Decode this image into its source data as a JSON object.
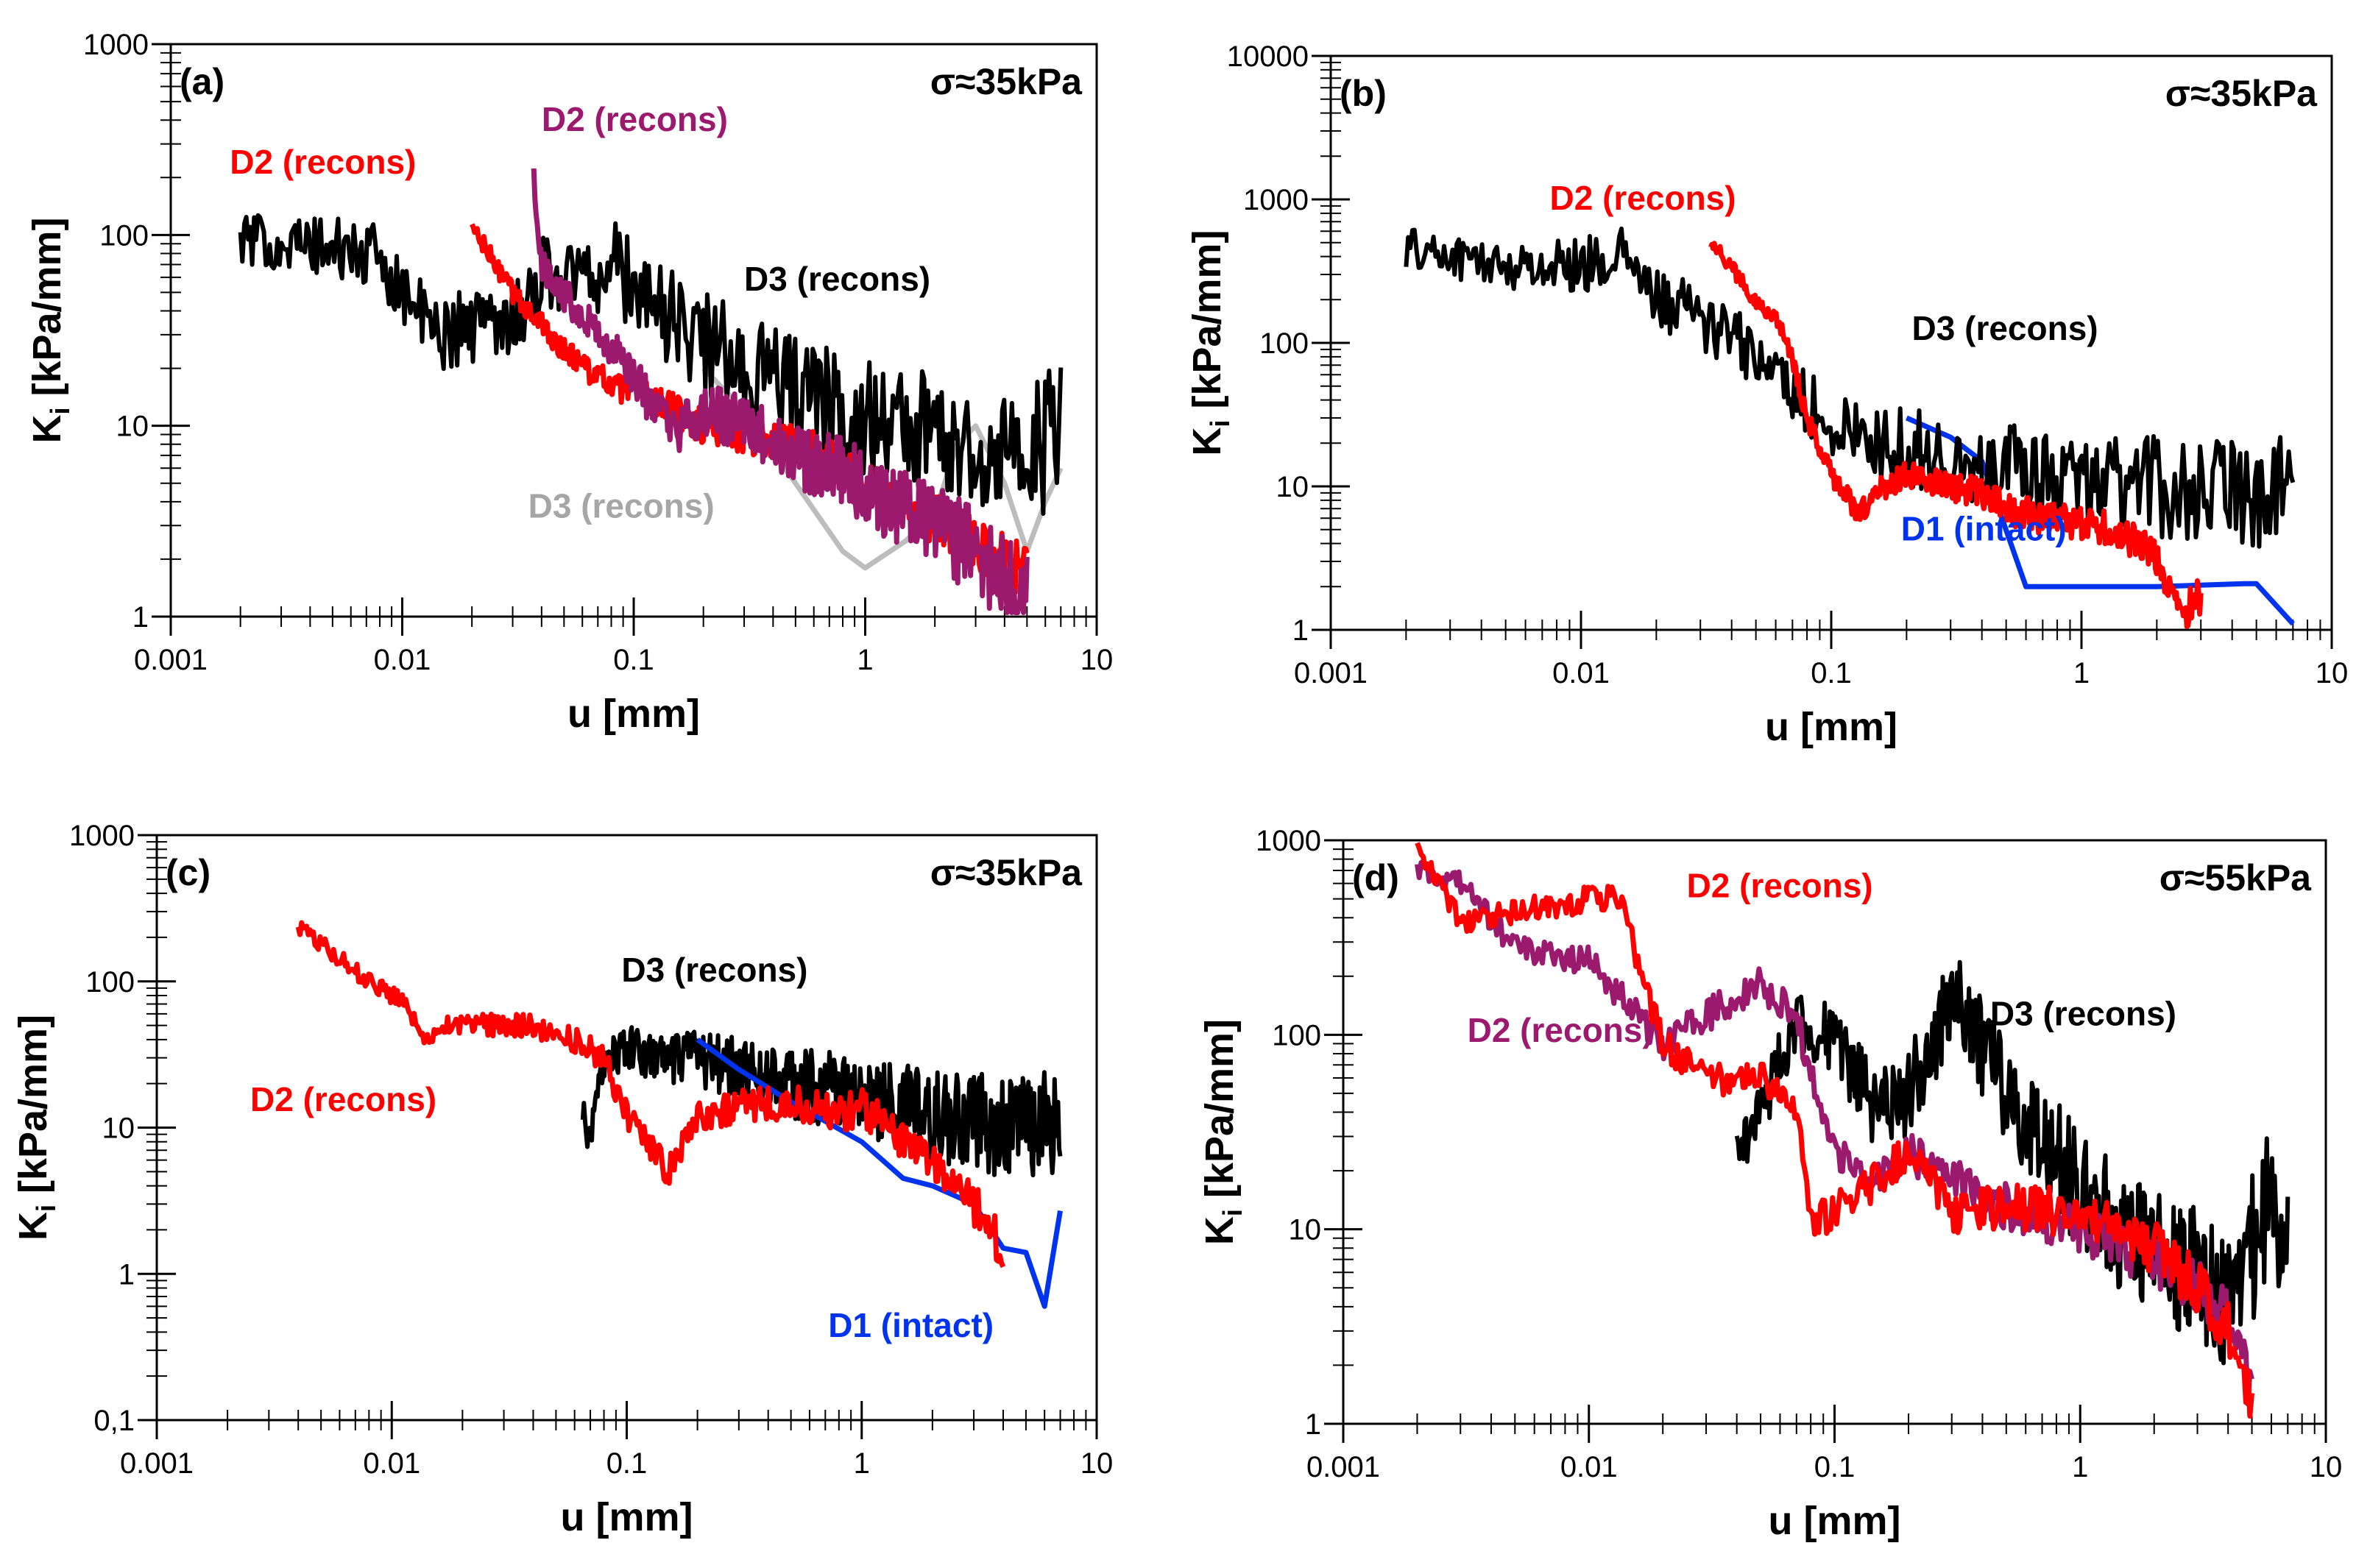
{
  "figure": {
    "description_free": true
  },
  "chart_data": [
    {
      "type": "line",
      "panel_label": "(a)",
      "annotation": "σ≈35kPa",
      "xlabel": "u [mm]",
      "ylabel_main": "K",
      "ylabel_sub": "i",
      "ylabel_rest": " [kPa/mm]",
      "xscale": "log",
      "yscale": "log",
      "xlim": [
        0.001,
        10
      ],
      "ylim": [
        1,
        1000
      ],
      "x_ticks": [
        {
          "v": 0.001,
          "label": "0.001"
        },
        {
          "v": 0.01,
          "label": "0.01"
        },
        {
          "v": 0.1,
          "label": "0.1"
        },
        {
          "v": 1,
          "label": "1"
        },
        {
          "v": 10,
          "label": "10"
        }
      ],
      "y_ticks": [
        {
          "v": 1,
          "label": "1"
        },
        {
          "v": 10,
          "label": "10"
        },
        {
          "v": 100,
          "label": "100"
        },
        {
          "v": 1000,
          "label": "1000"
        }
      ],
      "series": [
        {
          "name": "D3 (recons)",
          "color": "#bdbdbd",
          "noise": 0,
          "x": [
            0.2,
            0.3,
            0.5,
            0.8,
            1.0,
            1.5,
            2.0,
            2.5,
            3.0,
            4.0,
            5.0,
            6.0,
            7.0
          ],
          "y": [
            20,
            12,
            5,
            2.2,
            1.8,
            2.5,
            3.5,
            8,
            10,
            5,
            2.2,
            4,
            6
          ]
        },
        {
          "name": "D3 (recons)",
          "color": "#000000",
          "noise": 0.38,
          "x": [
            0.002,
            0.005,
            0.008,
            0.014,
            0.035,
            0.04,
            0.06,
            0.08,
            0.1,
            0.15,
            0.2,
            0.3,
            0.5,
            0.8,
            1,
            1.5,
            2,
            3,
            4,
            5,
            6,
            7
          ],
          "y": [
            95,
            85,
            75,
            30,
            42,
            65,
            60,
            70,
            55,
            35,
            28,
            20,
            16,
            12,
            11,
            10,
            9,
            8,
            7,
            7,
            8,
            9
          ]
        },
        {
          "name": "D2 (recons)",
          "color": "#ff0000",
          "noise": 0.15,
          "x": [
            0.02,
            0.03,
            0.05,
            0.08,
            0.1,
            0.15,
            0.2,
            0.3,
            0.5,
            0.8,
            1,
            1.5,
            2,
            3,
            4,
            5
          ],
          "y": [
            110,
            50,
            25,
            16,
            15,
            12,
            10,
            9,
            8,
            6,
            5,
            4,
            3.2,
            2.5,
            2,
            1.6
          ]
        },
        {
          "name": "D2 (recons)",
          "color": "#9c1a6e",
          "noise": 0.25,
          "x": [
            0.037,
            0.04,
            0.045,
            0.06,
            0.08,
            0.1,
            0.15,
            0.2,
            0.3,
            0.5,
            0.8,
            1,
            1.5,
            2,
            3,
            4,
            5
          ],
          "y": [
            210,
            70,
            55,
            40,
            25,
            18,
            9,
            12,
            10,
            7,
            6,
            4.5,
            3.5,
            3,
            2.2,
            1.6,
            1.3
          ]
        }
      ],
      "labels": [
        {
          "text": "D2 (recons)",
          "color": "#ff0000",
          "x": 0.0018,
          "y": 210
        },
        {
          "text": "D2 (recons)",
          "color": "#9c1a6e",
          "x": 0.04,
          "y": 350
        },
        {
          "text": "D3 (recons)",
          "color": "#000000",
          "x": 0.3,
          "y": 51
        },
        {
          "text": "D3 (recons)",
          "color": "#a6a6a6",
          "x": 0.035,
          "y": 3.3
        }
      ]
    },
    {
      "type": "line",
      "panel_label": "(b)",
      "annotation": "σ≈35kPa",
      "xlabel": "u [mm]",
      "ylabel_main": "K",
      "ylabel_sub": "i",
      "ylabel_rest": " [kPa/mm]",
      "xscale": "log",
      "yscale": "log",
      "xlim": [
        0.001,
        10
      ],
      "ylim": [
        1,
        10000
      ],
      "x_ticks": [
        {
          "v": 0.001,
          "label": "0.001"
        },
        {
          "v": 0.01,
          "label": "0.01"
        },
        {
          "v": 0.1,
          "label": "0.1"
        },
        {
          "v": 1,
          "label": "1"
        },
        {
          "v": 10,
          "label": "10"
        }
      ],
      "y_ticks": [
        {
          "v": 1,
          "label": "1"
        },
        {
          "v": 10,
          "label": "10"
        },
        {
          "v": 100,
          "label": "100"
        },
        {
          "v": 1000,
          "label": "1000"
        },
        {
          "v": 10000,
          "label": "10000"
        }
      ],
      "series": [
        {
          "name": "D1 (intact)",
          "color": "#0033ee",
          "noise": 0,
          "x": [
            0.2,
            0.3,
            0.4,
            0.6,
            1,
            2,
            4.5,
            5,
            7
          ],
          "y": [
            30,
            22,
            15,
            2,
            2,
            2,
            2.1,
            2.1,
            1.1
          ]
        },
        {
          "name": "D3 (recons)",
          "color": "#000000",
          "noise": 0.4,
          "x": [
            0.002,
            0.005,
            0.01,
            0.015,
            0.02,
            0.03,
            0.05,
            0.07,
            0.1,
            0.15,
            0.2,
            0.3,
            0.5,
            0.8,
            1,
            1.5,
            2,
            3,
            4,
            5,
            6,
            7
          ],
          "y": [
            460,
            340,
            350,
            400,
            200,
            150,
            80,
            50,
            25,
            20,
            18,
            16,
            14,
            12,
            11,
            10,
            10,
            9,
            9,
            9,
            10,
            10
          ]
        },
        {
          "name": "D2 (recons)",
          "color": "#ff0000",
          "noise": 0.15,
          "x": [
            0.033,
            0.05,
            0.065,
            0.08,
            0.1,
            0.13,
            0.15,
            0.2,
            0.3,
            0.4,
            0.5,
            0.7,
            1,
            1.3,
            1.5,
            2,
            2.5,
            3
          ],
          "y": [
            520,
            200,
            120,
            30,
            12,
            6.5,
            9,
            12,
            10,
            9,
            7,
            6,
            5.5,
            5,
            4.5,
            3,
            1.3,
            1.8
          ]
        }
      ],
      "labels": [
        {
          "text": "D2 (recons)",
          "color": "#ff0000",
          "x": 0.0075,
          "y": 850
        },
        {
          "text": "D3 (recons)",
          "color": "#000000",
          "x": 0.21,
          "y": 105
        },
        {
          "text": "D1 (intact)",
          "color": "#0033ee",
          "x": 0.19,
          "y": 4.2
        }
      ]
    },
    {
      "type": "line",
      "panel_label": "(c)",
      "annotation": "σ≈35kPa",
      "xlabel": "u [mm]",
      "ylabel_main": "K",
      "ylabel_sub": "i",
      "ylabel_rest": " [kPa/mm]",
      "xscale": "log",
      "yscale": "log",
      "xlim": [
        0.001,
        10
      ],
      "ylim": [
        0.1,
        1000
      ],
      "x_ticks": [
        {
          "v": 0.001,
          "label": "0.001"
        },
        {
          "v": 0.01,
          "label": "0.01"
        },
        {
          "v": 0.1,
          "label": "0.1"
        },
        {
          "v": 1,
          "label": "1"
        },
        {
          "v": 10,
          "label": "10"
        }
      ],
      "y_ticks": [
        {
          "v": 0.1,
          "label": "0,1"
        },
        {
          "v": 1,
          "label": "1"
        },
        {
          "v": 10,
          "label": "10"
        },
        {
          "v": 100,
          "label": "100"
        },
        {
          "v": 1000,
          "label": "1000"
        }
      ],
      "series": [
        {
          "name": "D3 (recons)",
          "color": "#000000",
          "noise": 0.38,
          "x": [
            0.065,
            0.07,
            0.08,
            0.1,
            0.15,
            0.2,
            0.3,
            0.5,
            0.8,
            1,
            1.5,
            2,
            3,
            4,
            5,
            6,
            7
          ],
          "y": [
            12,
            8,
            30,
            35,
            28,
            30,
            25,
            20,
            18,
            16,
            14,
            12,
            11,
            10,
            10,
            11,
            12
          ]
        },
        {
          "name": "D1 (intact)",
          "color": "#0033ee",
          "noise": 0,
          "x": [
            0.2,
            0.3,
            0.5,
            1,
            1.5,
            2,
            3,
            4,
            5,
            6,
            7
          ],
          "y": [
            40,
            25,
            15,
            8,
            4.5,
            4,
            3,
            1.5,
            1.4,
            0.6,
            2.7
          ]
        },
        {
          "name": "D2 (recons)",
          "color": "#ff0000",
          "noise": 0.15,
          "x": [
            0.004,
            0.008,
            0.011,
            0.014,
            0.016,
            0.04,
            0.06,
            0.08,
            0.1,
            0.15,
            0.2,
            0.3,
            0.5,
            0.8,
            1,
            1.5,
            2,
            3,
            4
          ],
          "y": [
            240,
            100,
            75,
            42,
            50,
            50,
            40,
            30,
            12,
            5,
            12,
            14,
            15,
            12,
            14,
            8,
            6,
            3,
            1.5
          ]
        }
      ],
      "labels": [
        {
          "text": "D3 (recons)",
          "color": "#000000",
          "x": 0.095,
          "y": 100
        },
        {
          "text": "D2 (recons)",
          "color": "#ff0000",
          "x": 0.0025,
          "y": 13
        },
        {
          "text": "D1 (intact)",
          "color": "#0033ee",
          "x": 0.72,
          "y": 0.37
        }
      ]
    },
    {
      "type": "line",
      "panel_label": "(d)",
      "annotation": "σ≈55kPa",
      "xlabel": "u [mm]",
      "ylabel_main": "K",
      "ylabel_sub": "i",
      "ylabel_rest": " [kPa/mm]",
      "xscale": "log",
      "yscale": "log",
      "xlim": [
        0.001,
        10
      ],
      "ylim": [
        1,
        1000
      ],
      "x_ticks": [
        {
          "v": 0.001,
          "label": "0.001"
        },
        {
          "v": 0.01,
          "label": "0.01"
        },
        {
          "v": 0.1,
          "label": "0.1"
        },
        {
          "v": 1,
          "label": "1"
        },
        {
          "v": 10,
          "label": "10"
        }
      ],
      "y_ticks": [
        {
          "v": 1,
          "label": "1"
        },
        {
          "v": 10,
          "label": "10"
        },
        {
          "v": 100,
          "label": "100"
        },
        {
          "v": 1000,
          "label": "1000"
        }
      ],
      "series": [
        {
          "name": "D3 (recons)",
          "color": "#000000",
          "noise": 0.4,
          "x": [
            0.04,
            0.05,
            0.07,
            0.1,
            0.15,
            0.2,
            0.3,
            0.35,
            0.5,
            0.8,
            1,
            1.5,
            2,
            3,
            4,
            5,
            6,
            7
          ],
          "y": [
            25,
            40,
            120,
            90,
            40,
            50,
            150,
            120,
            50,
            25,
            15,
            10,
            8,
            6,
            4,
            8,
            15,
            10
          ]
        },
        {
          "name": "D2 (recons)",
          "color": "#9c1a6e",
          "noise": 0.15,
          "x": [
            0.002,
            0.003,
            0.005,
            0.01,
            0.02,
            0.05,
            0.07,
            0.1,
            0.15,
            0.2,
            0.3,
            0.5,
            1,
            2,
            3,
            4,
            5
          ],
          "y": [
            700,
            600,
            280,
            240,
            90,
            190,
            120,
            25,
            17,
            25,
            18,
            13,
            10,
            7,
            5,
            3.5,
            1.5
          ]
        },
        {
          "name": "D2 (recons)",
          "color": "#ff0000",
          "noise": 0.15,
          "x": [
            0.002,
            0.003,
            0.013,
            0.02,
            0.03,
            0.05,
            0.07,
            0.08,
            0.1,
            0.15,
            0.2,
            0.3,
            0.5,
            1,
            2,
            3,
            4,
            5
          ],
          "y": [
            900,
            380,
            530,
            90,
            60,
            60,
            40,
            10,
            13,
            18,
            25,
            12,
            13,
            12,
            8,
            5,
            3,
            1.3
          ]
        }
      ],
      "labels": [
        {
          "text": "D2 (recons)",
          "color": "#ff0000",
          "x": 0.025,
          "y": 510
        },
        {
          "text": "D2 (recons)",
          "color": "#9c1a6e",
          "x": 0.0032,
          "y": 92
        },
        {
          "text": "D3 (recons)",
          "color": "#000000",
          "x": 0.43,
          "y": 112
        }
      ]
    }
  ]
}
